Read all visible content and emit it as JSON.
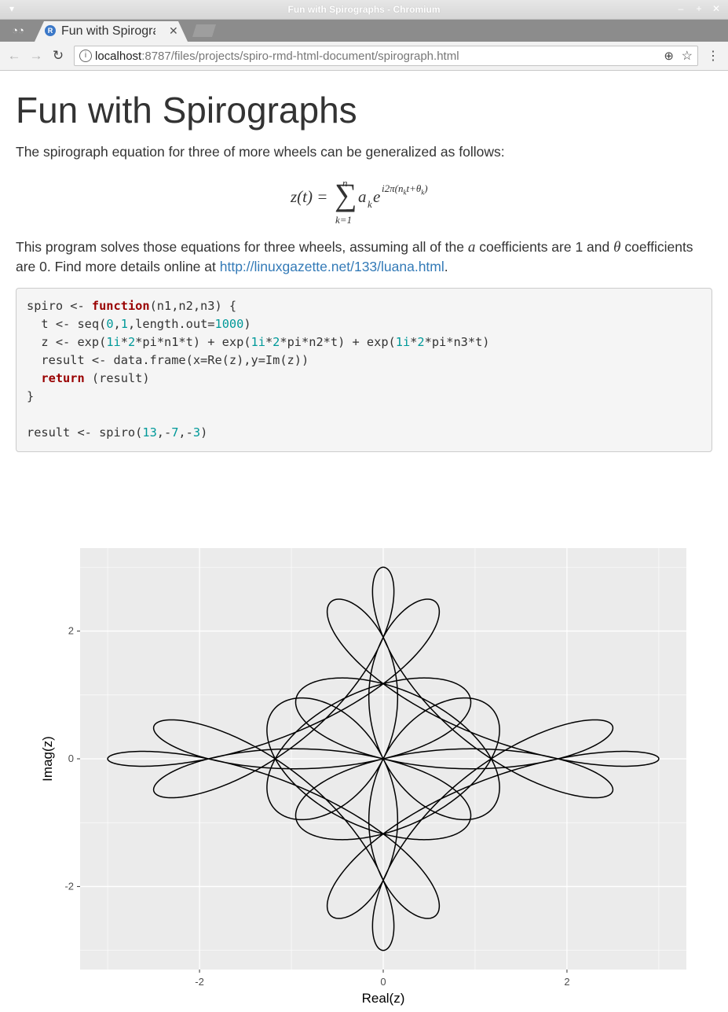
{
  "window": {
    "title": "Fun with Spirographs - Chromium"
  },
  "tab": {
    "title": "Fun with Spirographs",
    "favicon": "R"
  },
  "address": {
    "host": "localhost",
    "rest": ":8787/files/projects/spiro-rmd-html-document/spirograph.html"
  },
  "doc": {
    "title": "Fun with Spirographs",
    "intro": "The spirograph equation for three of more wheels can be generalized as follows:",
    "p2_a": "This program solves those equations for three wheels, assuming all of the ",
    "p2_sym_a": "a",
    "p2_b": " coefficients are 1 and ",
    "p2_sym_theta": "θ",
    "p2_c": " coefficients are 0. Find more details online at ",
    "link": "http://linuxgazette.net/133/luana.html",
    "p2_end": "."
  },
  "equation": {
    "lhs": "z(t) =",
    "sum": "∑",
    "upper": "n",
    "lower": "k=1",
    "term": "a",
    "sub_k": "k",
    "base": "e",
    "exponent": "i2π(n",
    "exp_sub": "k",
    "exp_t": "t+θ",
    "exp_sub2": "k",
    "exp_close": ")"
  },
  "code": [
    [
      [
        "",
        "spiro <- "
      ],
      [
        "kw",
        "function"
      ],
      [
        "",
        "(n1,n2,n3) {"
      ]
    ],
    [
      [
        "",
        "  t <- seq("
      ],
      [
        "num",
        "0"
      ],
      [
        "",
        ","
      ],
      [
        "num",
        "1"
      ],
      [
        "",
        ",length.out="
      ],
      [
        "num",
        "1000"
      ],
      [
        "",
        ")"
      ]
    ],
    [
      [
        "",
        "  z <- exp("
      ],
      [
        "num",
        "1i"
      ],
      [
        "",
        "*"
      ],
      [
        "num",
        "2"
      ],
      [
        "",
        "*pi*n1*t) + exp("
      ],
      [
        "num",
        "1i"
      ],
      [
        "",
        "*"
      ],
      [
        "num",
        "2"
      ],
      [
        "",
        "*pi*n2*t) + exp("
      ],
      [
        "num",
        "1i"
      ],
      [
        "",
        "*"
      ],
      [
        "num",
        "2"
      ],
      [
        "",
        "*pi*n3*t)"
      ]
    ],
    [
      [
        "",
        "  result <- data.frame(x=Re(z),y=Im(z))"
      ]
    ],
    [
      [
        "",
        "  "
      ],
      [
        "kw",
        "return"
      ],
      [
        "",
        " (result)"
      ]
    ],
    [
      [
        "",
        "}"
      ]
    ],
    [
      [
        "",
        ""
      ]
    ],
    [
      [
        "",
        "result <- spiro("
      ],
      [
        "num",
        "13"
      ],
      [
        "",
        ",-"
      ],
      [
        "num",
        "7"
      ],
      [
        "",
        ",-"
      ],
      [
        "num",
        "3"
      ],
      [
        "",
        ")"
      ]
    ]
  ],
  "chart_data": {
    "type": "line",
    "equation_params": {
      "n1": 13,
      "n2": -7,
      "n3": -3,
      "points": 1000
    },
    "xlabel": "Real(z)",
    "ylabel": "Imag(z)",
    "x_ticks": [
      "-2",
      "0",
      "2"
    ],
    "y_ticks": [
      "2",
      "0",
      "-2"
    ],
    "xlim": [
      -3.3,
      3.3
    ],
    "ylim": [
      -3.3,
      3.3
    ],
    "grid": true,
    "panel_color": "#ebebeb",
    "line_color": "#000000"
  }
}
